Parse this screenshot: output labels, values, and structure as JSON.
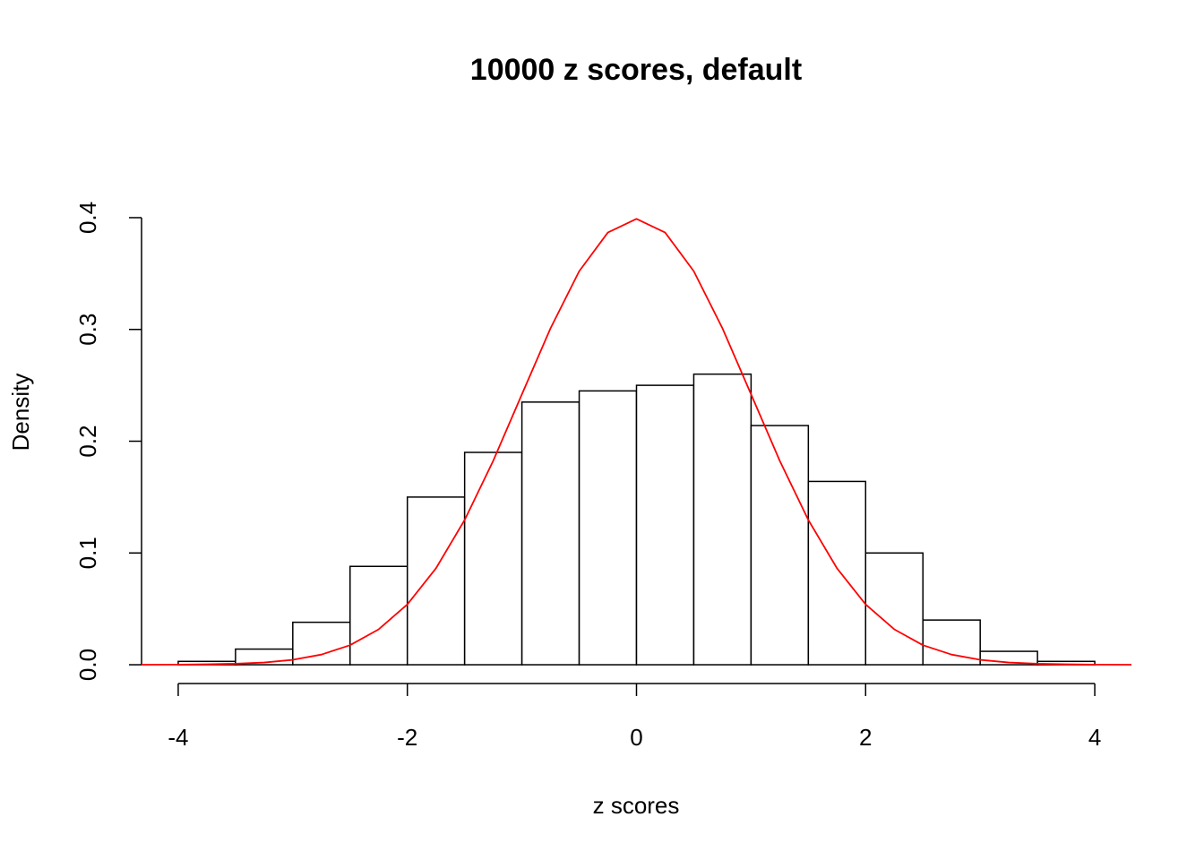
{
  "chart_data": {
    "type": "histogram",
    "title": "10000 z scores, default",
    "x_label": "z scores",
    "y_label": "Density",
    "bins": [
      -4,
      -3.5,
      -3,
      -2.5,
      -2,
      -1.5,
      -1,
      -0.5,
      0,
      0.5,
      1,
      1.5,
      2,
      2.5,
      3,
      3.5,
      4
    ],
    "values": [
      0.003,
      0.014,
      0.038,
      0.088,
      0.15,
      0.19,
      0.235,
      0.245,
      0.25,
      0.26,
      0.214,
      0.164,
      0.1,
      0.04,
      0.012,
      0.003
    ],
    "color": "#ffffff",
    "edge_color": "#000000",
    "curve": {
      "color": "#ff0000",
      "x": [
        -4.32,
        -4,
        -3.75,
        -3.5,
        -3.25,
        -3,
        -2.75,
        -2.5,
        -2.25,
        -2,
        -1.75,
        -1.5,
        -1.25,
        -1,
        -0.75,
        -0.5,
        -0.25,
        0,
        0.25,
        0.5,
        0.75,
        1,
        1.25,
        1.5,
        1.75,
        2,
        2.25,
        2.5,
        2.75,
        3,
        3.25,
        3.5,
        3.75,
        4,
        4.32
      ],
      "values": [
        0,
        0.0001,
        0.0004,
        0.0009,
        0.002,
        0.0044,
        0.0091,
        0.0175,
        0.0317,
        0.054,
        0.0863,
        0.1295,
        0.1826,
        0.242,
        0.3011,
        0.3521,
        0.3867,
        0.3989,
        0.3867,
        0.3521,
        0.3011,
        0.242,
        0.1826,
        0.1295,
        0.0863,
        0.054,
        0.0317,
        0.0175,
        0.0091,
        0.0044,
        0.002,
        0.0009,
        0.0004,
        0.0001,
        0
      ]
    },
    "xlim": [
      -4.32,
      4.32
    ],
    "ylim": [
      -0.016,
      0.416
    ],
    "xticks": [
      -4,
      -2,
      0,
      2,
      4
    ],
    "yticks": [
      {
        "value": 0,
        "label": "0.0"
      },
      0.1,
      0.2,
      0.3,
      0.4
    ]
  }
}
